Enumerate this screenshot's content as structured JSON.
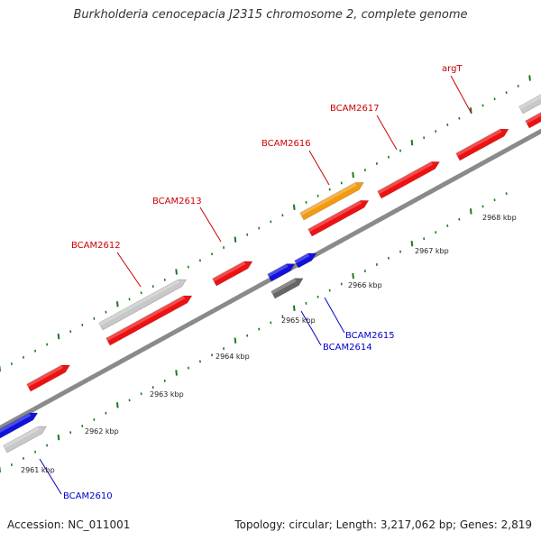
{
  "title": "Burkholderia cenocepacia J2315 chromosome 2, complete genome",
  "footer": {
    "accession": "Accession: NC_011001",
    "topology": "Topology: circular; Length: 3,217,062 bp; Genes: 2,819"
  },
  "colors": {
    "backbone": "#8a8a8a",
    "tick_green": "#1a7a1a",
    "forward_label": "#cc0000",
    "reverse_label": "#0000cc",
    "gene_red": "#ee1111",
    "gene_grey": "#c8c8c8",
    "gene_blue": "#1111dd",
    "gene_orange": "#f39a10",
    "gene_dark": "#666666"
  },
  "scale_labels": [
    "2961 kbp",
    "2962 kbp",
    "2963 kbp",
    "2964 kbp",
    "2965 kbp",
    "2966 kbp",
    "2967 kbp",
    "2968 kbp"
  ],
  "gene_labels": {
    "forward": [
      "BCAM2612",
      "BCAM2613",
      "BCAM2616",
      "BCAM2617",
      "argT"
    ],
    "reverse": [
      "BCAM2610",
      "BCAM2614",
      "BCAM2615"
    ]
  }
}
